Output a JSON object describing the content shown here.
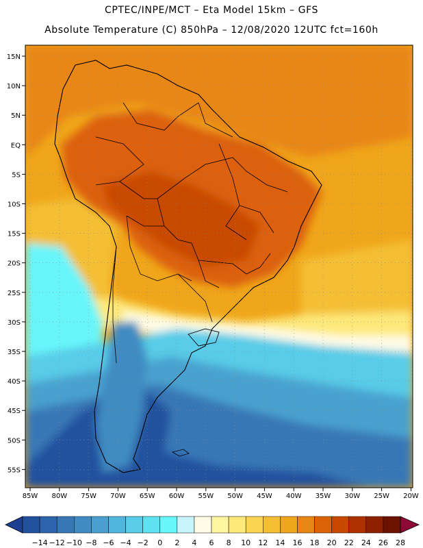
{
  "header": {
    "line1": "CPTEC/INPE/MCT –  Eta Model 15km – GFS",
    "line2": "Absolute Temperature (C) 850hPa – 12/08/2020 12UTC fct=160h"
  },
  "map": {
    "lat_labels": [
      "15N",
      "10N",
      "5N",
      "EQ",
      "5S",
      "10S",
      "15S",
      "20S",
      "25S",
      "30S",
      "35S",
      "40S",
      "45S",
      "50S",
      "55S"
    ],
    "lon_labels": [
      "85W",
      "80W",
      "75W",
      "70W",
      "65W",
      "60W",
      "55W",
      "50W",
      "45W",
      "40W",
      "35W",
      "30W",
      "25W",
      "20W"
    ],
    "field": "Absolute Temperature 850hPa",
    "units": "C"
  },
  "colorbar": {
    "labels": [
      "-14",
      "-12",
      "-10",
      "-8",
      "-6",
      "-4",
      "-2",
      "0",
      "2",
      "4",
      "6",
      "8",
      "10",
      "12",
      "14",
      "16",
      "18",
      "20",
      "22",
      "24",
      "26",
      "28"
    ],
    "colors": [
      "#1c3f94",
      "#24519e",
      "#2e64ab",
      "#3877b6",
      "#3f8bc2",
      "#4aa1cf",
      "#51b6dd",
      "#58cce8",
      "#5fe2ef",
      "#67f6fb",
      "#c8f4fb",
      "#fffbe6",
      "#fff5a0",
      "#fde97a",
      "#fad553",
      "#f4bf35",
      "#f0a61a",
      "#e88614",
      "#dc6107",
      "#c84800",
      "#ad3200",
      "#8e2200",
      "#6c1200",
      "#8e0a36"
    ]
  }
}
